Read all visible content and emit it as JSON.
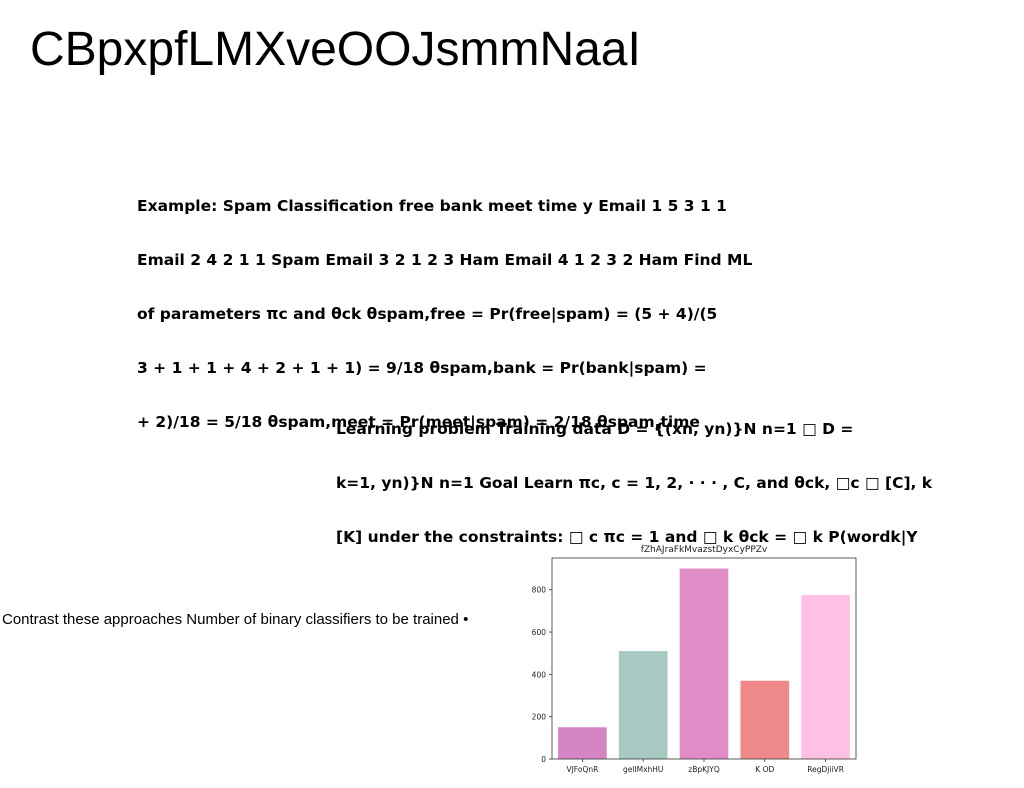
{
  "page": {
    "title": "CBpxpfLMXveOOJsmmNaaI"
  },
  "blocks": {
    "spam_example": {
      "lines": [
        "Example: Spam Classification free bank meet time y Email 1 5 3 1 1",
        "Email 2 4 2 1 1 Spam Email 3 2 1 2 3 Ham Email 4 1 2 3 2 Ham Find ML",
        "of parameters πc and θck θspam,free = Pr(free|spam) = (5 + 4)/(5",
        "3 + 1 + 1 + 4 + 2 + 1 + 1) = 9/18 θspam,bank = Pr(bank|spam) =",
        "+ 2)/18 = 5/18 θspam,meet = Pr(meet|spam) = 2/18 θspam,time"
      ]
    },
    "learning_problem": {
      "lines": [
        "Learning problem Training data D = {(xn, yn)}N n=1 □ D =",
        "k=1, yn)}N n=1 Goal Learn πc, c = 1, 2, · · · , C, and θck, □c □ [C], k",
        "[K] under the constraints: □ c πc = 1 and □ k θck = □ k P(wordk|Y"
      ]
    },
    "contrast": {
      "text": "Contrast these approaches Number of binary classifiers to be trained •"
    }
  },
  "chart_data": {
    "type": "bar",
    "title": "fZhAJraFkMvazstDyxCyPPZv",
    "categories": [
      "VJFoQnR",
      "gelIMxhHU",
      "zBpKJYQ",
      "K OD",
      "RegDjiiVR"
    ],
    "values": [
      150,
      510,
      900,
      370,
      775
    ],
    "colors": [
      "#d584c4",
      "#a8c8c2",
      "#e08cc6",
      "#f08a8a",
      "#ffc0e4"
    ],
    "ylim": [
      0,
      950
    ],
    "yticks": [
      0,
      200,
      400,
      600,
      800
    ],
    "xlabel": "",
    "ylabel": "",
    "grid": false
  }
}
